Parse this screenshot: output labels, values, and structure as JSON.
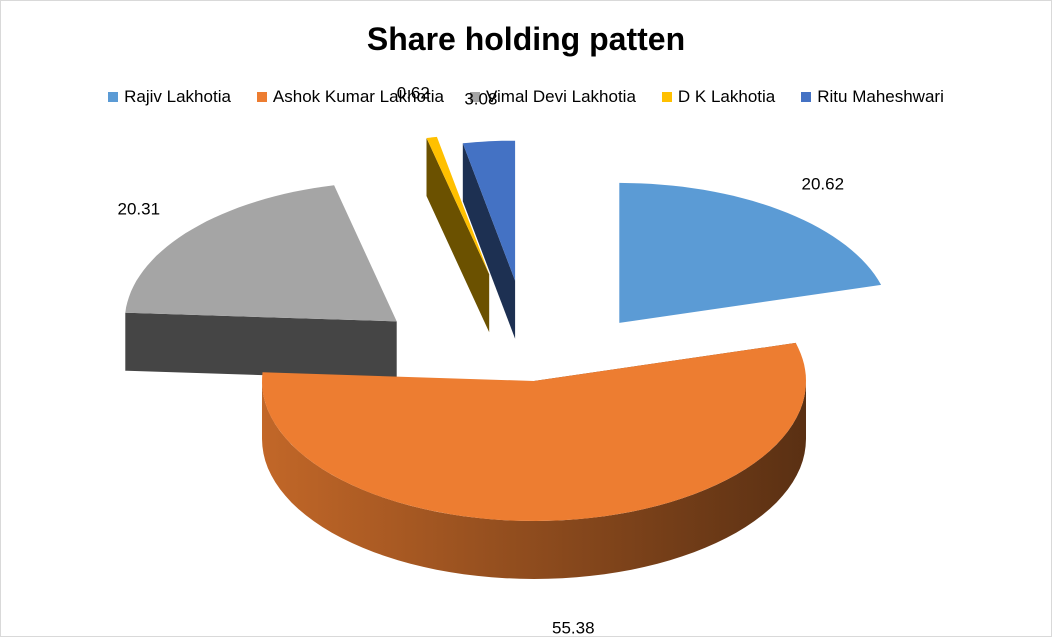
{
  "chart_data": {
    "type": "pie",
    "title": "Share holding patten",
    "categories": [
      "Rajiv Lakhotia",
      "Ashok Kumar Lakhotia",
      "Vimal Devi Lakhotia",
      "D K Lakhotia",
      "Ritu Maheshwari"
    ],
    "values": [
      20.62,
      55.38,
      20.31,
      0.62,
      3.08
    ],
    "colors": [
      "#5b9bd5",
      "#ed7d31",
      "#a5a5a5",
      "#ffc000",
      "#4472c4"
    ],
    "legend_position": "top",
    "style": "3d-exploded"
  }
}
